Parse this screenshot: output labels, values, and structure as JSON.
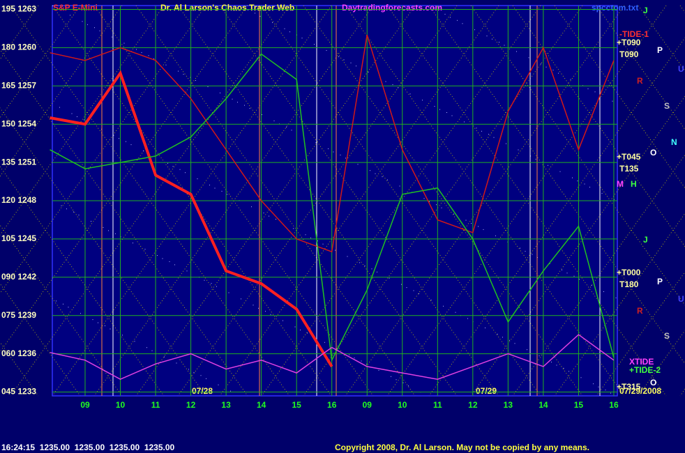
{
  "chart_data": {
    "type": "line",
    "title": "S&P E-Mini",
    "subtitle": "Dr. Al Larson's Chaos Trader Web",
    "site": "Daytradingforecasts.com",
    "file": "spcctom.txt",
    "footer_quote": "16:24:15  1235.00  1235.00  1235.00  1235.00",
    "copyright": "Copyright 2008, Dr. Al Larson. May not be copied by any means.",
    "date_labels": [
      "07/28",
      "07/29",
      "07/29/2008"
    ],
    "x": [
      8,
      9,
      10,
      11,
      12,
      13,
      14,
      15,
      16,
      17,
      18,
      19,
      20,
      21,
      22,
      23,
      24
    ],
    "xlim": [
      8.07,
      24.1
    ],
    "xticks": [
      {
        "value": 9,
        "label": "09"
      },
      10,
      11,
      12,
      13,
      14,
      15,
      16,
      {
        "value": 17,
        "label": "09"
      },
      {
        "value": 18,
        "label": "10"
      },
      {
        "value": 19,
        "label": "11"
      },
      {
        "value": 20,
        "label": "12"
      },
      {
        "value": 21,
        "label": "13"
      },
      {
        "value": 22,
        "label": "14"
      },
      {
        "value": 23,
        "label": "15"
      },
      {
        "value": 24,
        "label": "16"
      }
    ],
    "ylim": [
      1232.7,
      1263.3
    ],
    "yticks": [
      {
        "value": 1233,
        "label": "045 1233"
      },
      {
        "value": 1236,
        "label": "060 1236"
      },
      {
        "value": 1239,
        "label": "075 1239"
      },
      {
        "value": 1242,
        "label": "090 1242"
      },
      {
        "value": 1245,
        "label": "105 1245"
      },
      {
        "value": 1248,
        "label": "120 1248"
      },
      {
        "value": 1251,
        "label": "135 1251"
      },
      {
        "value": 1254,
        "label": "150 1254"
      },
      {
        "value": 1257,
        "label": "165 1257"
      },
      {
        "value": 1260,
        "label": "180 1260"
      },
      {
        "value": 1263,
        "label": "195 1263"
      }
    ],
    "grid": true,
    "series": [
      {
        "color": "#ff2020",
        "values": [
          1254.5,
          1254,
          1258,
          1250,
          1248.5,
          1242.5,
          1241.5,
          1239.5,
          1235,
          null,
          null,
          null,
          null,
          null,
          null,
          null,
          null
        ]
      },
      {
        "name": "-TIDE-1",
        "color": "#d01818",
        "values": [
          1259.6,
          1259,
          1260,
          1259,
          1256,
          1252,
          1248,
          1245,
          1244,
          1261,
          1252,
          1246.5,
          1245.5,
          1255,
          1260,
          1252,
          1259
        ]
      },
      {
        "name": "+TIDE-2",
        "color": "#20c020",
        "values": [
          1252,
          1250.5,
          1251,
          1251.5,
          1253,
          1256,
          1259.5,
          1257.5,
          1235.5,
          1241,
          1248.5,
          1249,
          1245,
          1238.5,
          1242.5,
          1246,
          1235.7
        ]
      },
      {
        "name": "XTIDE",
        "color": "#e040e0",
        "values": [
          1236.1,
          1235.5,
          1234,
          1235.2,
          1236,
          1234.8,
          1235.5,
          1234.5,
          1236.5,
          1235,
          1234.5,
          1234,
          1235,
          1236,
          1235,
          1237.5,
          1235.5
        ]
      }
    ],
    "right_labels": [
      "+T090",
      "T090",
      "+T045",
      "T135",
      "+T000",
      "T180",
      "+T315"
    ],
    "planet_labels": [
      "J",
      "P",
      "U",
      "R",
      "S",
      "N",
      "O",
      "M",
      "H",
      "J",
      "P",
      "U",
      "R",
      "S",
      "O"
    ]
  }
}
